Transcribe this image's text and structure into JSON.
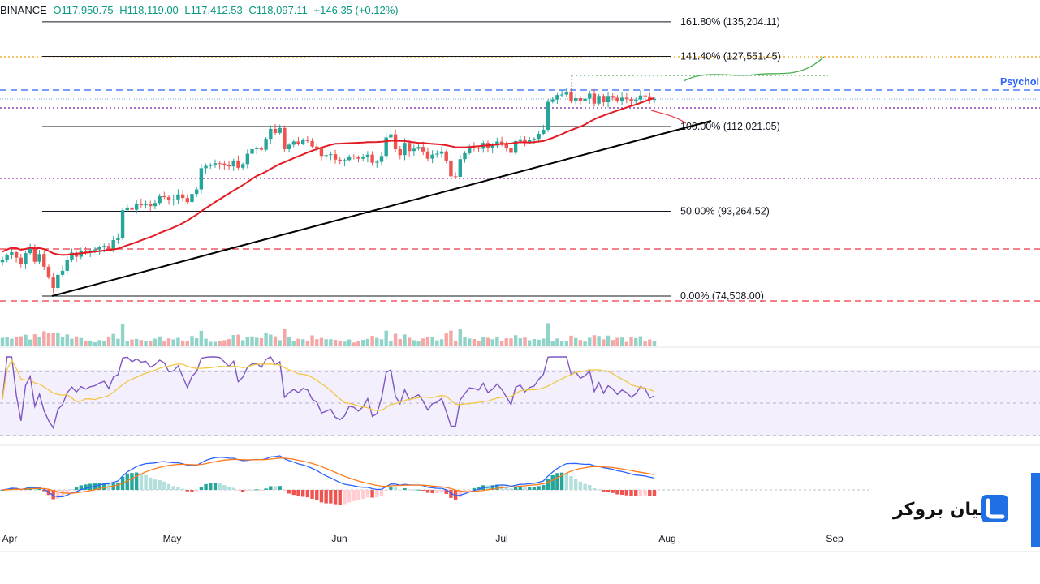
{
  "header": {
    "exchange": "BINANCE",
    "open": "O117,950.75",
    "high": "H118,119.00",
    "low": "L117,412.53",
    "close": "C118,097.11",
    "change": "+146.35 (+0.12%)"
  },
  "drawing_labels": {
    "psych": "Psychol"
  },
  "logo": {
    "text": "لیان بروکر"
  },
  "colors": {
    "up": "#26a69a",
    "down": "#ef5350",
    "ma": "#e31b23",
    "rsi": "#7e57c2",
    "rsi_ma": "#f2c744",
    "macd": "#2962ff",
    "signal": "#ff7a1a",
    "brand": "#1f6fe5"
  },
  "chart_data": {
    "type": "candlestick",
    "symbol_exchange": "BINANCE",
    "x_ticks": [
      "Apr",
      "May",
      "Jun",
      "Jul",
      "Aug",
      "Sep"
    ],
    "fib_levels": [
      {
        "label": "161.80% (135,204.11)",
        "price": 135204.11
      },
      {
        "label": "141.40% (127,551.45)",
        "price": 127551.45
      },
      {
        "label": "100.00% (112,021.05)",
        "price": 112021.05
      },
      {
        "label": "50.00% (93,264.52)",
        "price": 93264.52
      },
      {
        "label": "0.00% (74,508.00)",
        "price": 74508.0
      }
    ],
    "price_series_close": [
      82500,
      83500,
      84200,
      83000,
      81500,
      84000,
      85200,
      82100,
      83800,
      81000,
      78600,
      76300,
      79200,
      80100,
      82600,
      84100,
      83200,
      84500,
      84100,
      84600,
      84800,
      85300,
      85600,
      84900,
      86900,
      87400,
      93500,
      94100,
      93600,
      94900,
      94600,
      94900,
      94400,
      95100,
      96600,
      96400,
      95700,
      95900,
      97000,
      96200,
      95300,
      97100,
      98100,
      102800,
      103300,
      103600,
      103900,
      103800,
      103500,
      103200,
      104500,
      102900,
      103700,
      106000,
      107000,
      107200,
      106900,
      109300,
      111500,
      110600,
      111700,
      107000,
      108000,
      108700,
      108200,
      109000,
      108800,
      107600,
      107200,
      105500,
      105700,
      105900,
      104700,
      104300,
      104600,
      105400,
      105300,
      104900,
      105200,
      105800,
      104000,
      104200,
      105500,
      109600,
      110300,
      107000,
      105700,
      108400,
      106600,
      107100,
      107500,
      106500,
      104900,
      105800,
      106000,
      106500,
      104500,
      101000,
      100900,
      104800,
      106100,
      107400,
      107300,
      107100,
      108400,
      107200,
      107800,
      108700,
      108100,
      107200,
      106200,
      108800,
      109200,
      108400,
      109100,
      109300,
      110400,
      111300,
      117500,
      118000,
      119000,
      119100,
      119700,
      117700,
      118300,
      117700,
      118200,
      119300,
      117100,
      118800,
      117400,
      118800,
      118400,
      117700,
      118400,
      118100,
      117600,
      118000,
      118900,
      118700,
      117900,
      118100
    ],
    "ma_label": "",
    "indicators": [
      "Volume",
      "RSI",
      "MACD"
    ]
  }
}
